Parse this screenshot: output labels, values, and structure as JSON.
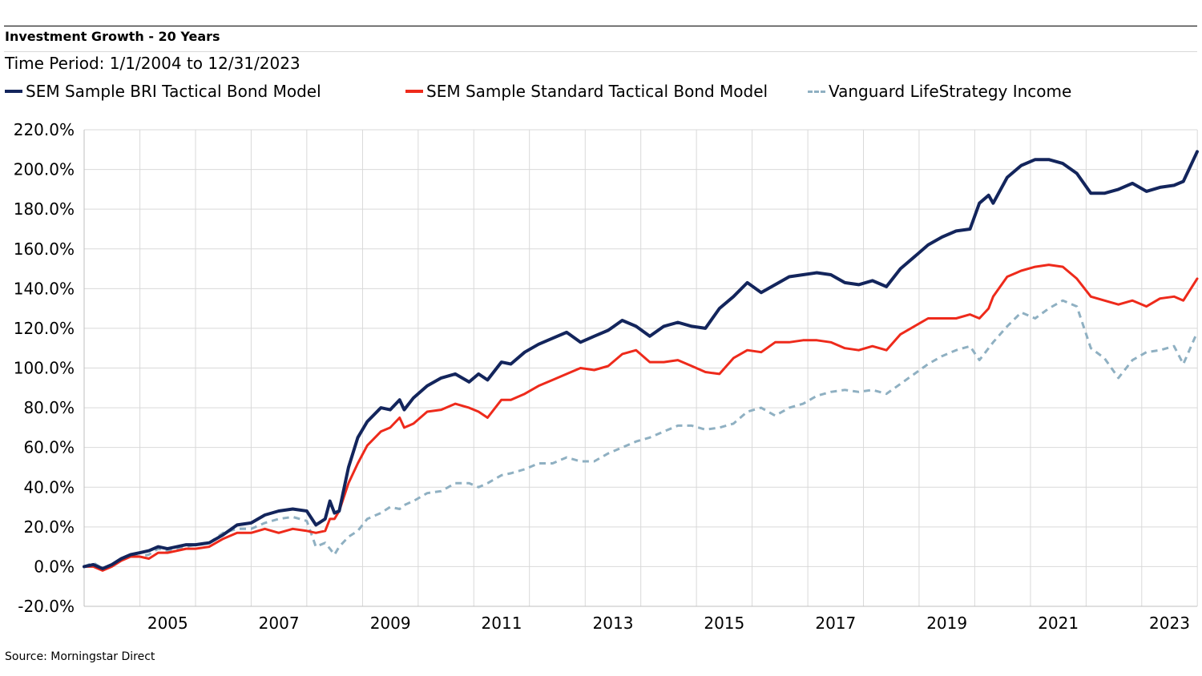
{
  "header": {
    "title": "Investment Growth - 20 Years",
    "subtitle": "Time Period: 1/1/2004 to 12/31/2023"
  },
  "footer": {
    "source": "Source: Morningstar Direct"
  },
  "chart_data": {
    "type": "line",
    "title": "Investment Growth - 20 Years",
    "subtitle": "Time Period: 1/1/2004 to 12/31/2023",
    "xlabel": "",
    "ylabel": "",
    "x_range": [
      "2004-01-01",
      "2023-12-31"
    ],
    "x_ticks": [
      "2005",
      "2007",
      "2009",
      "2011",
      "2013",
      "2015",
      "2017",
      "2019",
      "2021",
      "2023"
    ],
    "y_ticks": [
      "220.0%",
      "200.0%",
      "180.0%",
      "160.0%",
      "140.0%",
      "120.0%",
      "100.0%",
      "80.0%",
      "60.0%",
      "40.0%",
      "20.0%",
      "0.0%",
      "-20.0%"
    ],
    "ylim": [
      -20,
      220
    ],
    "grid": true,
    "legend_position": "top",
    "series": [
      {
        "name": "SEM Sample BRI Tactical Bond Model",
        "color": "#13255c",
        "style": "solid",
        "points": [
          [
            "2004-01-01",
            0
          ],
          [
            "2004-03-01",
            1
          ],
          [
            "2004-05-01",
            -1
          ],
          [
            "2004-07-01",
            1
          ],
          [
            "2004-09-01",
            4
          ],
          [
            "2004-11-01",
            6
          ],
          [
            "2005-01-01",
            7
          ],
          [
            "2005-03-01",
            8
          ],
          [
            "2005-05-01",
            10
          ],
          [
            "2005-07-01",
            9
          ],
          [
            "2005-09-01",
            10
          ],
          [
            "2005-11-01",
            11
          ],
          [
            "2006-01-01",
            11
          ],
          [
            "2006-04-01",
            12
          ],
          [
            "2006-07-01",
            16
          ],
          [
            "2006-10-01",
            21
          ],
          [
            "2007-01-01",
            22
          ],
          [
            "2007-04-01",
            26
          ],
          [
            "2007-07-01",
            28
          ],
          [
            "2007-10-01",
            29
          ],
          [
            "2008-01-01",
            28
          ],
          [
            "2008-03-01",
            21
          ],
          [
            "2008-05-01",
            24
          ],
          [
            "2008-06-01",
            33
          ],
          [
            "2008-07-01",
            27
          ],
          [
            "2008-08-01",
            28
          ],
          [
            "2008-10-01",
            50
          ],
          [
            "2008-12-01",
            65
          ],
          [
            "2009-02-01",
            73
          ],
          [
            "2009-05-01",
            80
          ],
          [
            "2009-07-01",
            79
          ],
          [
            "2009-09-01",
            84
          ],
          [
            "2009-10-01",
            79
          ],
          [
            "2009-12-01",
            85
          ],
          [
            "2010-03-01",
            91
          ],
          [
            "2010-06-01",
            95
          ],
          [
            "2010-09-01",
            97
          ],
          [
            "2010-12-01",
            93
          ],
          [
            "2011-02-01",
            97
          ],
          [
            "2011-04-01",
            94
          ],
          [
            "2011-07-01",
            103
          ],
          [
            "2011-09-01",
            102
          ],
          [
            "2011-12-01",
            108
          ],
          [
            "2012-03-01",
            112
          ],
          [
            "2012-06-01",
            115
          ],
          [
            "2012-09-01",
            118
          ],
          [
            "2012-12-01",
            113
          ],
          [
            "2013-03-01",
            116
          ],
          [
            "2013-06-01",
            119
          ],
          [
            "2013-09-01",
            124
          ],
          [
            "2013-12-01",
            121
          ],
          [
            "2014-03-01",
            116
          ],
          [
            "2014-06-01",
            121
          ],
          [
            "2014-09-01",
            123
          ],
          [
            "2014-12-01",
            121
          ],
          [
            "2015-03-01",
            120
          ],
          [
            "2015-06-01",
            130
          ],
          [
            "2015-09-01",
            136
          ],
          [
            "2015-12-01",
            143
          ],
          [
            "2016-03-01",
            138
          ],
          [
            "2016-06-01",
            142
          ],
          [
            "2016-09-01",
            146
          ],
          [
            "2016-12-01",
            147
          ],
          [
            "2017-03-01",
            148
          ],
          [
            "2017-06-01",
            147
          ],
          [
            "2017-09-01",
            143
          ],
          [
            "2017-12-01",
            142
          ],
          [
            "2018-03-01",
            144
          ],
          [
            "2018-06-01",
            141
          ],
          [
            "2018-09-01",
            150
          ],
          [
            "2018-12-01",
            156
          ],
          [
            "2019-03-01",
            162
          ],
          [
            "2019-06-01",
            166
          ],
          [
            "2019-09-01",
            169
          ],
          [
            "2019-12-01",
            170
          ],
          [
            "2020-02-01",
            183
          ],
          [
            "2020-04-01",
            187
          ],
          [
            "2020-05-01",
            183
          ],
          [
            "2020-08-01",
            196
          ],
          [
            "2020-11-01",
            202
          ],
          [
            "2021-02-01",
            205
          ],
          [
            "2021-05-01",
            205
          ],
          [
            "2021-08-01",
            203
          ],
          [
            "2021-11-01",
            198
          ],
          [
            "2022-02-01",
            188
          ],
          [
            "2022-05-01",
            188
          ],
          [
            "2022-08-01",
            190
          ],
          [
            "2022-11-01",
            193
          ],
          [
            "2023-02-01",
            189
          ],
          [
            "2023-05-01",
            191
          ],
          [
            "2023-08-01",
            192
          ],
          [
            "2023-10-01",
            194
          ],
          [
            "2023-12-31",
            209
          ]
        ]
      },
      {
        "name": "SEM Sample Standard Tactical Bond Model",
        "color": "#ee2a1b",
        "style": "solid",
        "points": [
          [
            "2004-01-01",
            0
          ],
          [
            "2004-03-01",
            0
          ],
          [
            "2004-05-01",
            -2
          ],
          [
            "2004-07-01",
            0
          ],
          [
            "2004-09-01",
            3
          ],
          [
            "2004-11-01",
            5
          ],
          [
            "2005-01-01",
            5
          ],
          [
            "2005-03-01",
            4
          ],
          [
            "2005-05-01",
            7
          ],
          [
            "2005-07-01",
            7
          ],
          [
            "2005-09-01",
            8
          ],
          [
            "2005-11-01",
            9
          ],
          [
            "2006-01-01",
            9
          ],
          [
            "2006-04-01",
            10
          ],
          [
            "2006-07-01",
            14
          ],
          [
            "2006-10-01",
            17
          ],
          [
            "2007-01-01",
            17
          ],
          [
            "2007-04-01",
            19
          ],
          [
            "2007-07-01",
            17
          ],
          [
            "2007-10-01",
            19
          ],
          [
            "2008-01-01",
            18
          ],
          [
            "2008-03-01",
            17
          ],
          [
            "2008-05-01",
            18
          ],
          [
            "2008-06-01",
            24
          ],
          [
            "2008-07-01",
            24
          ],
          [
            "2008-08-01",
            28
          ],
          [
            "2008-10-01",
            42
          ],
          [
            "2008-12-01",
            52
          ],
          [
            "2009-02-01",
            61
          ],
          [
            "2009-05-01",
            68
          ],
          [
            "2009-07-01",
            70
          ],
          [
            "2009-09-01",
            75
          ],
          [
            "2009-10-01",
            70
          ],
          [
            "2009-12-01",
            72
          ],
          [
            "2010-03-01",
            78
          ],
          [
            "2010-06-01",
            79
          ],
          [
            "2010-09-01",
            82
          ],
          [
            "2010-12-01",
            80
          ],
          [
            "2011-02-01",
            78
          ],
          [
            "2011-04-01",
            75
          ],
          [
            "2011-07-01",
            84
          ],
          [
            "2011-09-01",
            84
          ],
          [
            "2011-12-01",
            87
          ],
          [
            "2012-03-01",
            91
          ],
          [
            "2012-06-01",
            94
          ],
          [
            "2012-09-01",
            97
          ],
          [
            "2012-12-01",
            100
          ],
          [
            "2013-03-01",
            99
          ],
          [
            "2013-06-01",
            101
          ],
          [
            "2013-09-01",
            107
          ],
          [
            "2013-12-01",
            109
          ],
          [
            "2014-03-01",
            103
          ],
          [
            "2014-06-01",
            103
          ],
          [
            "2014-09-01",
            104
          ],
          [
            "2014-12-01",
            101
          ],
          [
            "2015-03-01",
            98
          ],
          [
            "2015-06-01",
            97
          ],
          [
            "2015-09-01",
            105
          ],
          [
            "2015-12-01",
            109
          ],
          [
            "2016-03-01",
            108
          ],
          [
            "2016-06-01",
            113
          ],
          [
            "2016-09-01",
            113
          ],
          [
            "2016-12-01",
            114
          ],
          [
            "2017-03-01",
            114
          ],
          [
            "2017-06-01",
            113
          ],
          [
            "2017-09-01",
            110
          ],
          [
            "2017-12-01",
            109
          ],
          [
            "2018-03-01",
            111
          ],
          [
            "2018-06-01",
            109
          ],
          [
            "2018-09-01",
            117
          ],
          [
            "2018-12-01",
            121
          ],
          [
            "2019-03-01",
            125
          ],
          [
            "2019-06-01",
            125
          ],
          [
            "2019-09-01",
            125
          ],
          [
            "2019-12-01",
            127
          ],
          [
            "2020-02-01",
            125
          ],
          [
            "2020-04-01",
            130
          ],
          [
            "2020-05-01",
            136
          ],
          [
            "2020-08-01",
            146
          ],
          [
            "2020-11-01",
            149
          ],
          [
            "2021-02-01",
            151
          ],
          [
            "2021-05-01",
            152
          ],
          [
            "2021-08-01",
            151
          ],
          [
            "2021-11-01",
            145
          ],
          [
            "2022-02-01",
            136
          ],
          [
            "2022-05-01",
            134
          ],
          [
            "2022-08-01",
            132
          ],
          [
            "2022-11-01",
            134
          ],
          [
            "2023-02-01",
            131
          ],
          [
            "2023-05-01",
            135
          ],
          [
            "2023-08-01",
            136
          ],
          [
            "2023-10-01",
            134
          ],
          [
            "2023-12-31",
            145
          ]
        ]
      },
      {
        "name": "Vanguard LifeStrategy Income",
        "color": "#8fb0c2",
        "style": "dashed",
        "points": [
          [
            "2004-01-01",
            0
          ],
          [
            "2004-03-01",
            2
          ],
          [
            "2004-05-01",
            -1
          ],
          [
            "2004-07-01",
            1
          ],
          [
            "2004-09-01",
            3
          ],
          [
            "2004-11-01",
            6
          ],
          [
            "2005-01-01",
            5
          ],
          [
            "2005-03-01",
            6
          ],
          [
            "2005-05-01",
            9
          ],
          [
            "2005-07-01",
            8
          ],
          [
            "2005-09-01",
            9
          ],
          [
            "2005-11-01",
            10
          ],
          [
            "2006-01-01",
            11
          ],
          [
            "2006-04-01",
            12
          ],
          [
            "2006-07-01",
            17
          ],
          [
            "2006-10-01",
            19
          ],
          [
            "2007-01-01",
            19
          ],
          [
            "2007-04-01",
            22
          ],
          [
            "2007-07-01",
            24
          ],
          [
            "2007-10-01",
            25
          ],
          [
            "2008-01-01",
            23
          ],
          [
            "2008-03-01",
            10
          ],
          [
            "2008-05-01",
            12
          ],
          [
            "2008-06-01",
            9
          ],
          [
            "2008-07-01",
            6
          ],
          [
            "2008-08-01",
            10
          ],
          [
            "2008-10-01",
            15
          ],
          [
            "2008-12-01",
            18
          ],
          [
            "2009-02-01",
            24
          ],
          [
            "2009-05-01",
            27
          ],
          [
            "2009-07-01",
            30
          ],
          [
            "2009-09-01",
            29
          ],
          [
            "2009-10-01",
            31
          ],
          [
            "2009-12-01",
            33
          ],
          [
            "2010-03-01",
            37
          ],
          [
            "2010-06-01",
            38
          ],
          [
            "2010-09-01",
            42
          ],
          [
            "2010-12-01",
            42
          ],
          [
            "2011-02-01",
            40
          ],
          [
            "2011-04-01",
            42
          ],
          [
            "2011-07-01",
            46
          ],
          [
            "2011-09-01",
            47
          ],
          [
            "2011-12-01",
            49
          ],
          [
            "2012-03-01",
            52
          ],
          [
            "2012-06-01",
            52
          ],
          [
            "2012-09-01",
            55
          ],
          [
            "2012-12-01",
            53
          ],
          [
            "2013-03-01",
            53
          ],
          [
            "2013-06-01",
            57
          ],
          [
            "2013-09-01",
            60
          ],
          [
            "2013-12-01",
            63
          ],
          [
            "2014-03-01",
            65
          ],
          [
            "2014-06-01",
            68
          ],
          [
            "2014-09-01",
            71
          ],
          [
            "2014-12-01",
            71
          ],
          [
            "2015-03-01",
            69
          ],
          [
            "2015-06-01",
            70
          ],
          [
            "2015-09-01",
            72
          ],
          [
            "2015-12-01",
            78
          ],
          [
            "2016-03-01",
            80
          ],
          [
            "2016-06-01",
            76
          ],
          [
            "2016-09-01",
            80
          ],
          [
            "2016-12-01",
            82
          ],
          [
            "2017-03-01",
            86
          ],
          [
            "2017-06-01",
            88
          ],
          [
            "2017-09-01",
            89
          ],
          [
            "2017-12-01",
            88
          ],
          [
            "2018-03-01",
            89
          ],
          [
            "2018-06-01",
            87
          ],
          [
            "2018-09-01",
            92
          ],
          [
            "2018-12-01",
            97
          ],
          [
            "2019-03-01",
            102
          ],
          [
            "2019-06-01",
            106
          ],
          [
            "2019-09-01",
            109
          ],
          [
            "2019-12-01",
            111
          ],
          [
            "2020-02-01",
            104
          ],
          [
            "2020-04-01",
            110
          ],
          [
            "2020-05-01",
            113
          ],
          [
            "2020-08-01",
            121
          ],
          [
            "2020-11-01",
            128
          ],
          [
            "2021-02-01",
            125
          ],
          [
            "2021-05-01",
            130
          ],
          [
            "2021-08-01",
            134
          ],
          [
            "2021-11-01",
            131
          ],
          [
            "2022-02-01",
            110
          ],
          [
            "2022-05-01",
            105
          ],
          [
            "2022-08-01",
            95
          ],
          [
            "2022-11-01",
            104
          ],
          [
            "2023-02-01",
            108
          ],
          [
            "2023-05-01",
            109
          ],
          [
            "2023-08-01",
            111
          ],
          [
            "2023-10-01",
            102
          ],
          [
            "2023-12-31",
            118
          ]
        ]
      }
    ]
  }
}
